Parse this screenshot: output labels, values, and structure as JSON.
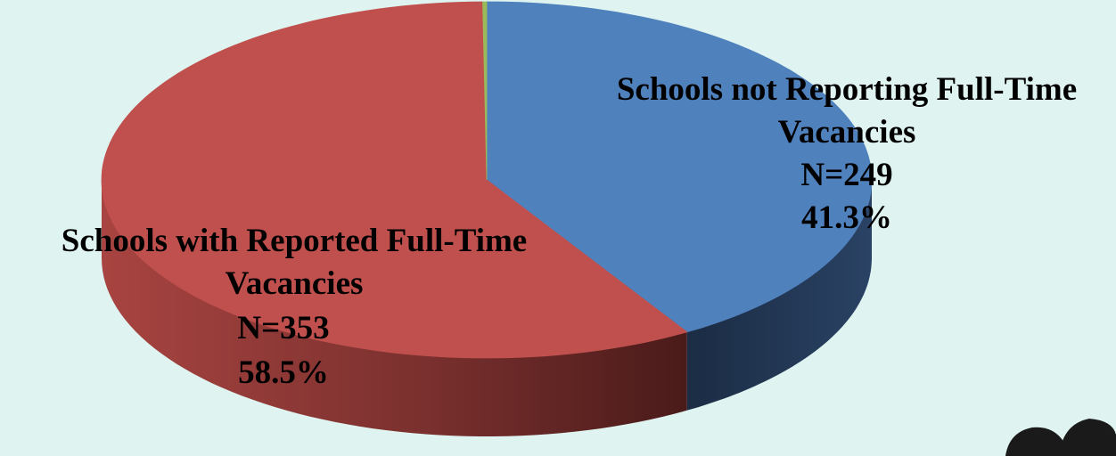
{
  "chart_data": {
    "type": "pie",
    "title": "",
    "slices": [
      {
        "name": "Schools not Reporting Full-Time Vacancies",
        "label_lines": [
          "Schools not Reporting Full-Time",
          "Vacancies"
        ],
        "n_label": "N=249",
        "pct_label": "41.3%",
        "value": 249,
        "percent": 41.3,
        "color": "#4f81bd",
        "side_color": "#1f3350"
      },
      {
        "name": "Schools with Reported Full-Time Vacancies",
        "label_lines": [
          "Schools with Reported Full-Time",
          "Vacancies"
        ],
        "n_label": "N=353",
        "pct_label": "58.5%",
        "value": 353,
        "percent": 58.5,
        "color": "#c0504d",
        "side_color": "#6e2a28"
      },
      {
        "name": "",
        "value": 1,
        "percent": 0.2,
        "color": "#9bbb59",
        "side_color": "#56692f"
      }
    ],
    "style": "3d-pie",
    "legend": "none",
    "background": "#dff4f1"
  }
}
